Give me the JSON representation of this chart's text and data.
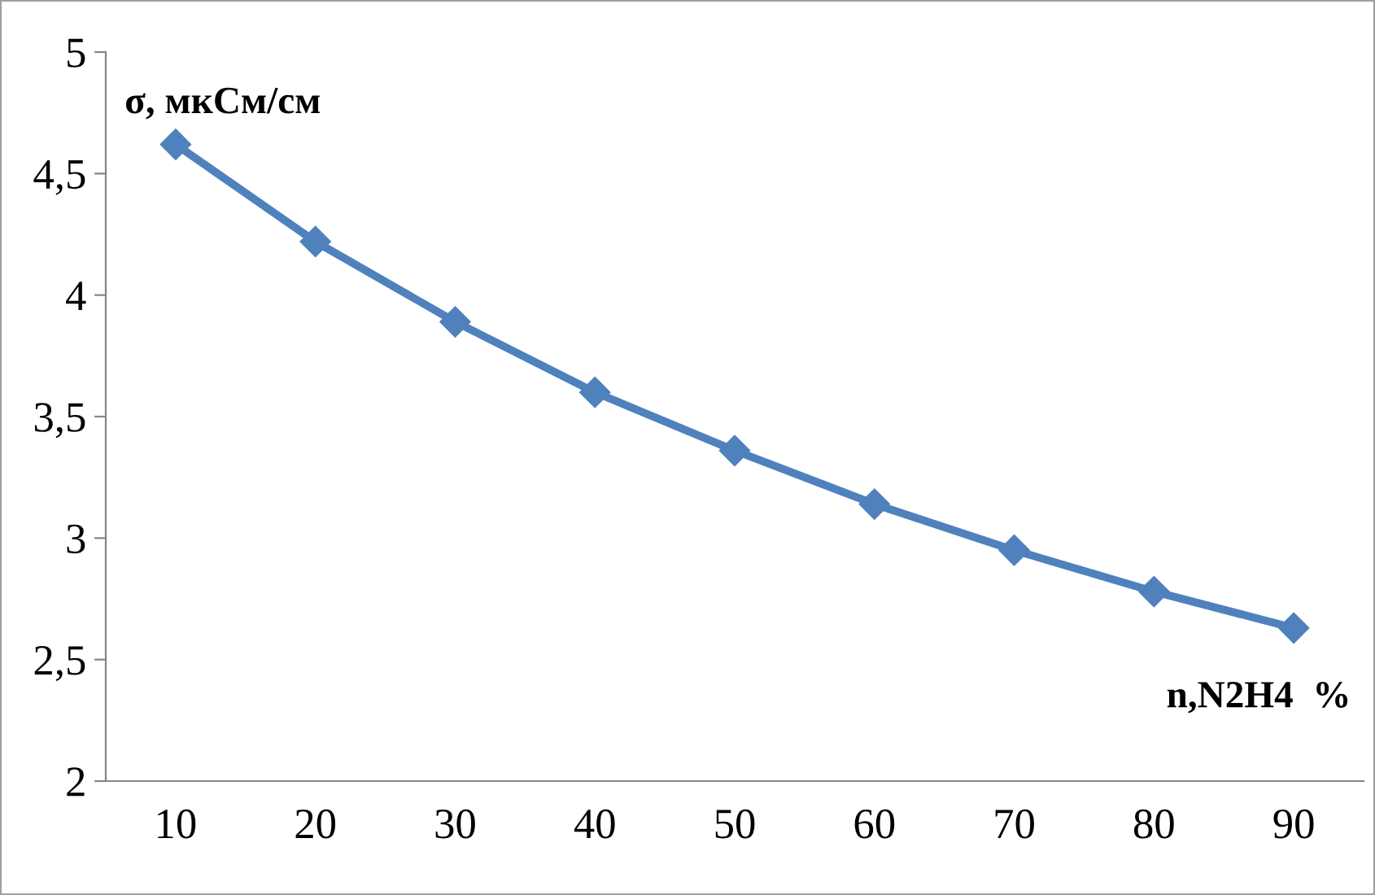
{
  "chart_data": {
    "type": "line",
    "xlabel": "n,N2H4  %",
    "ylabel": "σ, мкСм/см",
    "categories": [
      "10",
      "20",
      "30",
      "40",
      "50",
      "60",
      "70",
      "80",
      "90"
    ],
    "series": [
      {
        "color": "#4f81bd",
        "values": [
          4.62,
          4.22,
          3.89,
          3.6,
          3.36,
          3.14,
          2.95,
          2.78,
          2.63
        ]
      }
    ],
    "ylim": [
      2,
      5
    ],
    "yticks": [
      2,
      {
        "value": 2.5,
        "label": "2,5"
      },
      3,
      {
        "value": 3.5,
        "label": "3,5"
      },
      4,
      {
        "value": 4.5,
        "label": "4,5"
      },
      5
    ],
    "marker": "diamond",
    "line_style": "solid",
    "grid": false,
    "legend": false
  }
}
